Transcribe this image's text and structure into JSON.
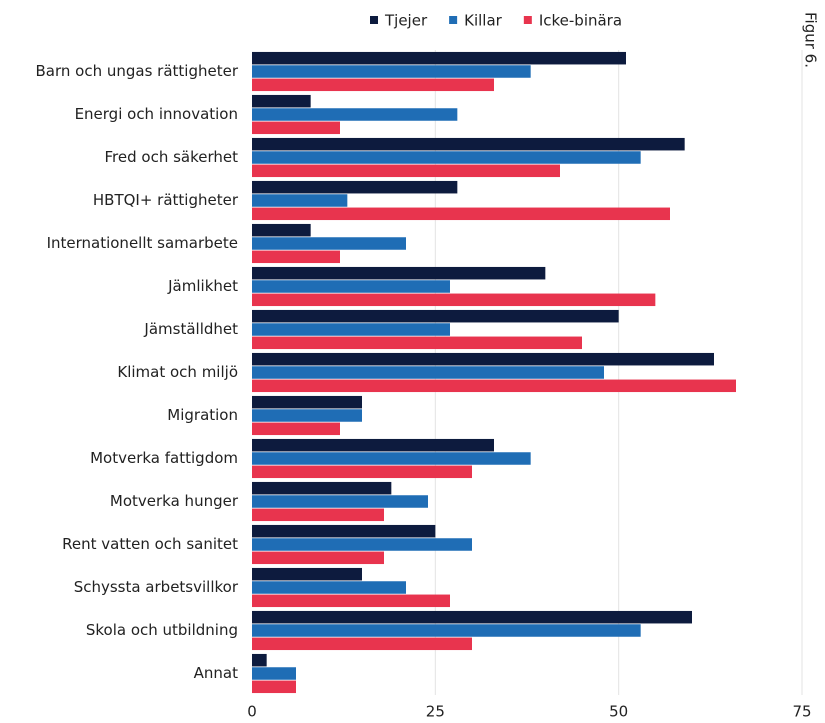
{
  "chart_data": {
    "type": "bar",
    "orientation": "horizontal",
    "side_label": "Figur 6.",
    "categories": [
      "Barn och ungas rättigheter",
      "Energi och innovation",
      "Fred och säkerhet",
      "HBTQI+ rättigheter",
      "Internationellt samarbete",
      "Jämlikhet",
      "Jämställdhet",
      "Klimat och miljö",
      "Migration",
      "Motverka fattigdom",
      "Motverka hunger",
      "Rent vatten och sanitet",
      "Schyssta arbetsvillkor",
      "Skola och utbildning",
      "Annat"
    ],
    "series": [
      {
        "name": "Tjejer",
        "color": "#0d1b3e",
        "values": [
          51,
          8,
          59,
          28,
          8,
          40,
          50,
          63,
          15,
          33,
          19,
          25,
          15,
          60,
          2
        ]
      },
      {
        "name": "Killar",
        "color": "#1f6db5",
        "values": [
          38,
          28,
          53,
          13,
          21,
          27,
          27,
          48,
          15,
          38,
          24,
          30,
          21,
          53,
          6
        ]
      },
      {
        "name": "Icke-binära",
        "color": "#e8344e",
        "values": [
          33,
          12,
          42,
          57,
          12,
          55,
          45,
          66,
          12,
          30,
          18,
          18,
          27,
          30,
          6
        ]
      }
    ],
    "xlim": [
      0,
      75
    ],
    "xticks": [
      0,
      25,
      50,
      75
    ],
    "grid": true,
    "legend": "top"
  }
}
